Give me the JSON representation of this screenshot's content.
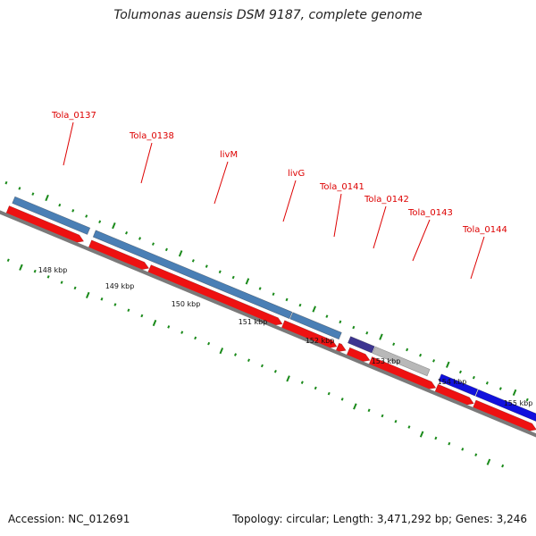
{
  "title": "Tolumonas auensis DSM 9187, complete genome",
  "accession": "Accession: NC_012691",
  "summary": "Topology: circular; Length: 3,471,292 bp; Genes: 3,246",
  "colors": {
    "backbone": "#7a7a7a",
    "tick": "#1a8a1a",
    "gene_label": "#dd0000",
    "cds": "#ee1111",
    "gene_steel": "#4a7fb5",
    "gene_navy": "#3d3590",
    "gene_gray": "#b8b8b8",
    "gene_blue": "#1111dd"
  },
  "chart_data": {
    "type": "genome-map",
    "kbp_labels": [
      "148 kbp",
      "149 kbp",
      "150 kbp",
      "151 kbp",
      "152 kbp",
      "153 kbp",
      "154 kbp",
      "155 kbp"
    ],
    "gene_labels": [
      "Tola_0137",
      "Tola_0138",
      "livM",
      "livG",
      "Tola_0141",
      "Tola_0142",
      "Tola_0143",
      "Tola_0144"
    ]
  }
}
